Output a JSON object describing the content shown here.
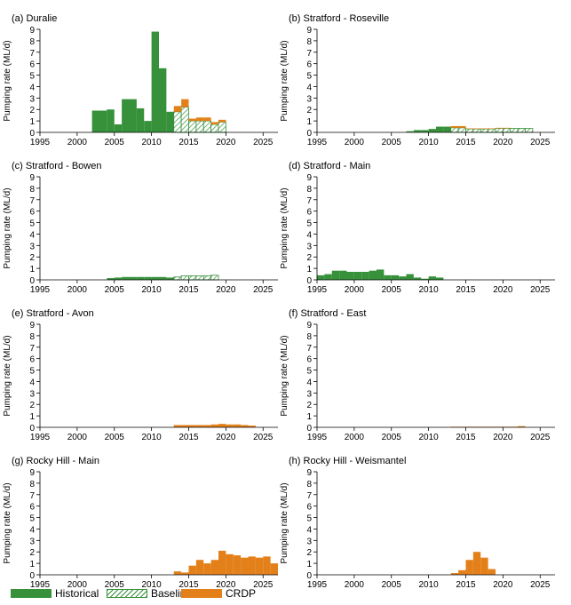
{
  "colors": {
    "historical": "#36913a",
    "baseline": "#36913a",
    "crdp": "#e3801a"
  },
  "legend": {
    "historical": "Historical",
    "baseline": "Baseline",
    "crdp": "CRDP"
  },
  "chart_data": [
    {
      "type": "bar",
      "title": "(a) Duralie",
      "ylabel": "Pumping rate (ML/d)",
      "xlim": [
        1995,
        2027
      ],
      "ylim": [
        0,
        9
      ],
      "xticks": [
        1995,
        2000,
        2005,
        2010,
        2015,
        2020,
        2025
      ],
      "yticks": [
        0,
        1,
        2,
        3,
        4,
        5,
        6,
        7,
        8,
        9
      ],
      "series": [
        {
          "name": "Historical",
          "x": [
            2002,
            2003,
            2004,
            2005,
            2006,
            2007,
            2008,
            2009,
            2010,
            2011,
            2012
          ],
          "values": [
            1.9,
            1.9,
            2.0,
            0.7,
            2.9,
            2.9,
            2.1,
            1.0,
            8.8,
            5.6,
            1.8
          ]
        },
        {
          "name": "Baseline",
          "x": [
            2013,
            2014,
            2015,
            2016,
            2017,
            2018,
            2019
          ],
          "values": [
            1.8,
            2.2,
            1.0,
            1.0,
            1.0,
            0.7,
            0.9
          ]
        },
        {
          "name": "CRDP",
          "x": [
            2013,
            2014,
            2015,
            2016,
            2017,
            2018,
            2019
          ],
          "values": [
            0.5,
            0.7,
            0.2,
            0.3,
            0.3,
            0.2,
            0.2
          ]
        }
      ]
    },
    {
      "type": "bar",
      "title": "(b) Stratford - Roseville",
      "ylabel": "Pumping rate (ML/d)",
      "xlim": [
        1995,
        2027
      ],
      "ylim": [
        0,
        9
      ],
      "xticks": [
        1995,
        2000,
        2005,
        2010,
        2015,
        2020,
        2025
      ],
      "yticks": [
        0,
        1,
        2,
        3,
        4,
        5,
        6,
        7,
        8,
        9
      ],
      "series": [
        {
          "name": "Historical",
          "x": [
            2007,
            2008,
            2009,
            2010,
            2011,
            2012
          ],
          "values": [
            0.1,
            0.2,
            0.2,
            0.3,
            0.5,
            0.5
          ]
        },
        {
          "name": "Baseline",
          "x": [
            2013,
            2014,
            2015,
            2016,
            2017,
            2018,
            2019,
            2020,
            2021,
            2022,
            2023
          ],
          "values": [
            0.4,
            0.4,
            0.3,
            0.3,
            0.3,
            0.3,
            0.35,
            0.35,
            0.35,
            0.35,
            0.35
          ]
        },
        {
          "name": "CRDP",
          "x": [
            2013,
            2014,
            2015,
            2016,
            2017,
            2018,
            2019,
            2020,
            2021,
            2022,
            2023
          ],
          "values": [
            0.15,
            0.15,
            0.05,
            0.05,
            0.05,
            0.05,
            0.05,
            0.05,
            0.0,
            0.0,
            0.0
          ]
        }
      ]
    },
    {
      "type": "bar",
      "title": "(c) Stratford - Bowen",
      "ylabel": "Pumping rate (ML/d)",
      "xlim": [
        1995,
        2027
      ],
      "ylim": [
        0,
        9
      ],
      "xticks": [
        1995,
        2000,
        2005,
        2010,
        2015,
        2020,
        2025
      ],
      "yticks": [
        0,
        1,
        2,
        3,
        4,
        5,
        6,
        7,
        8,
        9
      ],
      "series": [
        {
          "name": "Historical",
          "x": [
            2004,
            2005,
            2006,
            2007,
            2008,
            2009,
            2010,
            2011,
            2012
          ],
          "values": [
            0.15,
            0.2,
            0.25,
            0.25,
            0.25,
            0.25,
            0.25,
            0.25,
            0.2
          ]
        },
        {
          "name": "Baseline",
          "x": [
            2013,
            2014,
            2015,
            2016,
            2017,
            2018
          ],
          "values": [
            0.25,
            0.35,
            0.35,
            0.35,
            0.35,
            0.4
          ]
        }
      ]
    },
    {
      "type": "bar",
      "title": "(d) Stratford - Main",
      "ylabel": "Pumping rate (ML/d)",
      "xlim": [
        1995,
        2027
      ],
      "ylim": [
        0,
        9
      ],
      "xticks": [
        1995,
        2000,
        2005,
        2010,
        2015,
        2020,
        2025
      ],
      "yticks": [
        0,
        1,
        2,
        3,
        4,
        5,
        6,
        7,
        8,
        9
      ],
      "series": [
        {
          "name": "Historical",
          "x": [
            1995,
            1996,
            1997,
            1998,
            1999,
            2000,
            2001,
            2002,
            2003,
            2004,
            2005,
            2006,
            2007,
            2008,
            2009,
            2010,
            2011,
            2012
          ],
          "values": [
            0.4,
            0.5,
            0.8,
            0.8,
            0.7,
            0.7,
            0.7,
            0.8,
            0.9,
            0.4,
            0.4,
            0.3,
            0.5,
            0.2,
            0.1,
            0.3,
            0.2,
            0.0
          ]
        }
      ]
    },
    {
      "type": "bar",
      "title": "(e) Stratford - Avon",
      "ylabel": "Pumping rate (ML/d)",
      "xlim": [
        1995,
        2027
      ],
      "ylim": [
        0,
        9
      ],
      "xticks": [
        1995,
        2000,
        2005,
        2010,
        2015,
        2020,
        2025
      ],
      "yticks": [
        0,
        1,
        2,
        3,
        4,
        5,
        6,
        7,
        8,
        9
      ],
      "series": [
        {
          "name": "CRDP",
          "x": [
            2013,
            2014,
            2015,
            2016,
            2017,
            2018,
            2019,
            2020,
            2021,
            2022,
            2023
          ],
          "values": [
            0.2,
            0.2,
            0.2,
            0.2,
            0.2,
            0.25,
            0.3,
            0.25,
            0.25,
            0.2,
            0.15
          ]
        }
      ]
    },
    {
      "type": "bar",
      "title": "(f) Stratford - East",
      "ylabel": "Pumping rate (ML/d)",
      "xlim": [
        1995,
        2027
      ],
      "ylim": [
        0,
        9
      ],
      "xticks": [
        1995,
        2000,
        2005,
        2010,
        2015,
        2020,
        2025
      ],
      "yticks": [
        0,
        1,
        2,
        3,
        4,
        5,
        6,
        7,
        8,
        9
      ],
      "series": [
        {
          "name": "CRDP",
          "x": [
            2013,
            2014,
            2015,
            2016,
            2017,
            2018,
            2019,
            2020,
            2021,
            2022
          ],
          "values": [
            0.05,
            0.05,
            0.05,
            0.05,
            0.05,
            0.05,
            0.05,
            0.05,
            0.05,
            0.1
          ]
        }
      ]
    },
    {
      "type": "bar",
      "title": "(g) Rocky Hill - Main",
      "ylabel": "Pumping rate (ML/d)",
      "xlim": [
        1995,
        2027
      ],
      "ylim": [
        0,
        9
      ],
      "xticks": [
        1995,
        2000,
        2005,
        2010,
        2015,
        2020,
        2025
      ],
      "yticks": [
        0,
        1,
        2,
        3,
        4,
        5,
        6,
        7,
        8,
        9
      ],
      "series": [
        {
          "name": "CRDP",
          "x": [
            2013,
            2014,
            2015,
            2016,
            2017,
            2018,
            2019,
            2020,
            2021,
            2022,
            2023,
            2024,
            2025,
            2026
          ],
          "values": [
            0.3,
            0.2,
            0.8,
            1.3,
            1.0,
            1.3,
            2.1,
            1.8,
            1.7,
            1.5,
            1.6,
            1.5,
            1.6,
            1.0
          ]
        }
      ]
    },
    {
      "type": "bar",
      "title": "(h) Rocky Hill - Weismantel",
      "ylabel": "Pumping rate (ML/d)",
      "xlim": [
        1995,
        2027
      ],
      "ylim": [
        0,
        9
      ],
      "xticks": [
        1995,
        2000,
        2005,
        2010,
        2015,
        2020,
        2025
      ],
      "yticks": [
        0,
        1,
        2,
        3,
        4,
        5,
        6,
        7,
        8,
        9
      ],
      "series": [
        {
          "name": "CRDP",
          "x": [
            2013,
            2014,
            2015,
            2016,
            2017,
            2018
          ],
          "values": [
            0.15,
            0.4,
            1.3,
            2.0,
            1.5,
            0.5
          ]
        }
      ]
    }
  ]
}
